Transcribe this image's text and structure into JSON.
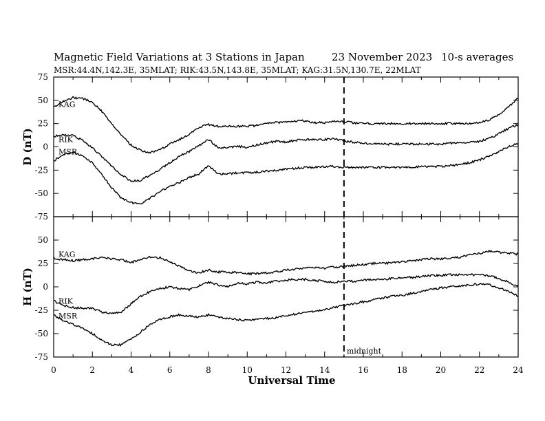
{
  "header": {
    "title": "Magnetic Field Variations at 3 Stations in Japan",
    "date": "23 November 2023",
    "cadence": "10-s averages",
    "stations_line": "MSR:44.4N,142.3E, 35MLAT;  RIK:43.5N,143.8E, 35MLAT;  KAG:31.5N,130.7E, 22MLAT"
  },
  "annotation": {
    "marker_x": 15,
    "text": "midnight"
  },
  "chart_data": [
    {
      "type": "line",
      "ylabel": "D (nT)",
      "xlabel": "",
      "xlim": [
        0,
        24
      ],
      "ylim": [
        -75,
        75
      ],
      "xticks": [
        0,
        2,
        4,
        6,
        8,
        10,
        12,
        14,
        16,
        18,
        20,
        22,
        24
      ],
      "yticks": [
        75,
        50,
        25,
        0,
        -25,
        -50,
        -75
      ],
      "x": [
        0,
        0.5,
        1,
        1.5,
        2,
        2.5,
        3,
        3.5,
        4,
        4.5,
        5,
        5.5,
        6,
        6.5,
        7,
        7.5,
        8,
        8.5,
        9,
        9.5,
        10,
        10.5,
        11,
        11.5,
        12,
        12.5,
        13,
        13.5,
        14,
        14.5,
        15,
        15.5,
        16,
        16.5,
        17,
        17.5,
        18,
        18.5,
        19,
        19.5,
        20,
        20.5,
        21,
        21.5,
        22,
        22.5,
        23,
        23.5,
        24
      ],
      "series": [
        {
          "name": "KAG",
          "label_x": 0.25,
          "label_y": 43,
          "values": [
            43,
            49,
            53,
            52,
            48,
            38,
            25,
            12,
            2,
            -4,
            -6,
            -3,
            3,
            8,
            13,
            21,
            24,
            22,
            22,
            22,
            22,
            23,
            25,
            26,
            27,
            28,
            28,
            26,
            26,
            28,
            27,
            26,
            25,
            25,
            25,
            25,
            25,
            25,
            25,
            25,
            25,
            25,
            25,
            25,
            26,
            29,
            35,
            43,
            52
          ]
        },
        {
          "name": "RIK",
          "label_x": 0.25,
          "label_y": 5,
          "values": [
            11,
            13,
            12,
            7,
            -1,
            -11,
            -21,
            -30,
            -37,
            -36,
            -30,
            -24,
            -17,
            -10,
            -5,
            1,
            8,
            -1,
            -1,
            1,
            -1,
            2,
            4,
            6,
            5,
            7,
            8,
            8,
            8,
            9,
            6,
            5,
            4,
            3,
            3,
            3,
            3,
            3,
            3,
            3,
            3,
            4,
            4,
            5,
            6,
            9,
            14,
            20,
            24
          ]
        },
        {
          "name": "MSR",
          "label_x": 0.25,
          "label_y": -8,
          "values": [
            -15,
            -8,
            -6,
            -10,
            -17,
            -30,
            -44,
            -55,
            -60,
            -61,
            -55,
            -48,
            -42,
            -38,
            -33,
            -29,
            -20,
            -29,
            -29,
            -28,
            -28,
            -27,
            -26,
            -25,
            -24,
            -23,
            -22,
            -22,
            -21,
            -21,
            -22,
            -22,
            -22,
            -22,
            -22,
            -22,
            -22,
            -22,
            -21,
            -21,
            -21,
            -20,
            -19,
            -17,
            -14,
            -10,
            -5,
            0,
            4
          ]
        }
      ]
    },
    {
      "type": "line",
      "ylabel": "H (nT)",
      "xlabel": "Universal Time",
      "xlim": [
        0,
        24
      ],
      "ylim": [
        -75,
        75
      ],
      "xticks": [
        0,
        2,
        4,
        6,
        8,
        10,
        12,
        14,
        16,
        18,
        20,
        22,
        24
      ],
      "xtick_labels": [
        "0",
        "2",
        "4",
        "6",
        "8",
        "10",
        "12",
        "14",
        "16",
        "18",
        "20",
        "22",
        "24"
      ],
      "yticks": [
        50,
        25,
        0,
        -25,
        -50,
        -75
      ],
      "x": [
        0,
        0.5,
        1,
        1.5,
        2,
        2.5,
        3,
        3.5,
        4,
        4.5,
        5,
        5.5,
        6,
        6.5,
        7,
        7.5,
        8,
        8.5,
        9,
        9.5,
        10,
        10.5,
        11,
        11.5,
        12,
        12.5,
        13,
        13.5,
        14,
        14.5,
        15,
        15.5,
        16,
        16.5,
        17,
        17.5,
        18,
        18.5,
        19,
        19.5,
        20,
        20.5,
        21,
        21.5,
        22,
        22.5,
        23,
        23.5,
        24
      ],
      "series": [
        {
          "name": "KAG",
          "label_x": 0.25,
          "label_y": 32,
          "values": [
            31,
            29,
            28,
            29,
            30,
            31,
            30,
            29,
            26,
            29,
            32,
            31,
            27,
            22,
            17,
            15,
            18,
            16,
            16,
            15,
            14,
            14,
            15,
            16,
            18,
            19,
            20,
            21,
            20,
            21,
            22,
            23,
            24,
            25,
            25,
            26,
            27,
            28,
            29,
            30,
            30,
            31,
            32,
            34,
            36,
            38,
            37,
            36,
            35
          ]
        },
        {
          "name": "RIK",
          "label_x": 0.25,
          "label_y": -18,
          "values": [
            -15,
            -20,
            -22,
            -23,
            -23,
            -27,
            -29,
            -27,
            -18,
            -10,
            -5,
            -2,
            0,
            -2,
            -3,
            1,
            5,
            2,
            0,
            4,
            3,
            5,
            4,
            6,
            7,
            8,
            8,
            7,
            6,
            5,
            6,
            6,
            7,
            8,
            8,
            9,
            10,
            10,
            11,
            12,
            12,
            13,
            13,
            13,
            13,
            12,
            9,
            5,
            0
          ]
        },
        {
          "name": "MSR",
          "label_x": 0.25,
          "label_y": -34,
          "values": [
            -30,
            -36,
            -40,
            -44,
            -50,
            -57,
            -62,
            -62,
            -56,
            -48,
            -40,
            -35,
            -32,
            -30,
            -31,
            -32,
            -30,
            -32,
            -34,
            -35,
            -36,
            -35,
            -34,
            -33,
            -31,
            -29,
            -27,
            -26,
            -24,
            -22,
            -20,
            -18,
            -16,
            -14,
            -12,
            -10,
            -9,
            -7,
            -5,
            -3,
            -1,
            0,
            1,
            2,
            3,
            2,
            -1,
            -5,
            -10
          ]
        }
      ]
    }
  ]
}
